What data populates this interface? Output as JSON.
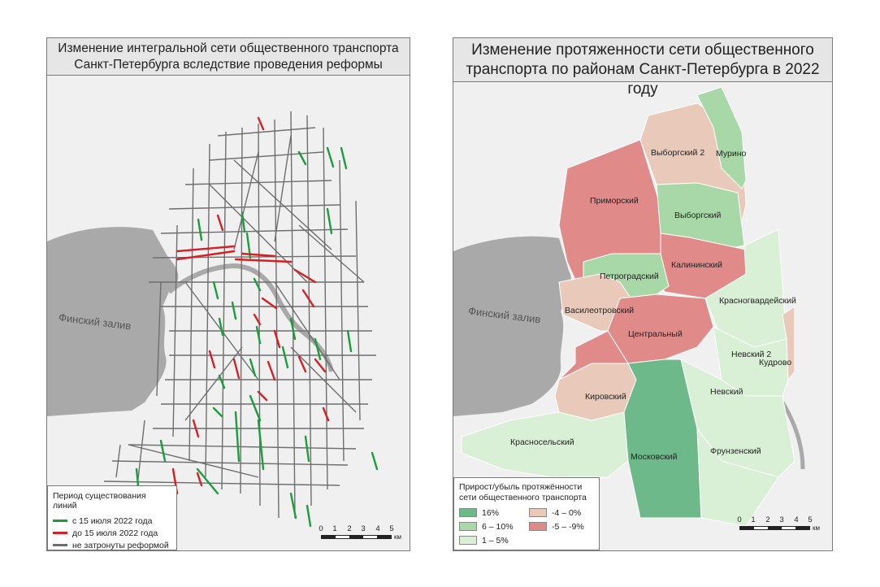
{
  "left_map": {
    "title_line1": "Изменение интегральной сети общественного транспорта",
    "title_line2": "Санкт-Петербурга вследствие проведения реформы",
    "gulf_label": "Финский залив",
    "legend": {
      "title": "Период существования линий",
      "items": [
        {
          "label": "с 15 июля 2022 года",
          "color": "#1a9e3c"
        },
        {
          "label": "до 15 июля 2022 года",
          "color": "#d62024"
        },
        {
          "label": "не затронуты реформой",
          "color": "#6e6e6e"
        }
      ]
    },
    "scale": {
      "ticks": [
        "0",
        "1",
        "2",
        "3",
        "4",
        "5"
      ],
      "unit": "км"
    }
  },
  "right_map": {
    "title_line1": "Изменение протяженности сети общественного",
    "title_line2": "транспорта по районам Санкт-Петербурга в 2022 году",
    "gulf_label": "Финский залив",
    "legend": {
      "title_line1": "Прирост/убыль протяжённости",
      "title_line2": "сети общественного транспорта",
      "items": [
        {
          "label": "16%",
          "color": "#6db98a"
        },
        {
          "label": "-4 – 0%",
          "color": "#e9c9b9"
        },
        {
          "label": "6 – 10%",
          "color": "#a8d8a8"
        },
        {
          "label": "-5 – -9%",
          "color": "#e08a8a"
        },
        {
          "label": "1 – 5%",
          "color": "#d9f0d6"
        }
      ]
    },
    "scale": {
      "ticks": [
        "0",
        "1",
        "2",
        "3",
        "4",
        "5"
      ],
      "unit": "км"
    },
    "districts": [
      {
        "name": "Приморский",
        "class": "-5 – -9%"
      },
      {
        "name": "Выборгский 2",
        "class": "-4 – 0%"
      },
      {
        "name": "Мурино",
        "class": "6 – 10%"
      },
      {
        "name": "Выборгский",
        "class": "6 – 10%"
      },
      {
        "name": "Калининский",
        "class": "-5 – -9%"
      },
      {
        "name": "Петроградский",
        "class": "6 – 10%"
      },
      {
        "name": "Василеотровский",
        "class": "-4 – 0%"
      },
      {
        "name": "Красногвардейский",
        "class": "1 – 5%"
      },
      {
        "name": "Центральный",
        "class": "-5 – -9%"
      },
      {
        "name": "Невский 2",
        "class": "1 – 5%"
      },
      {
        "name": "Кудрово",
        "class": "-4 – 0%"
      },
      {
        "name": "Невский",
        "class": "1 – 5%"
      },
      {
        "name": "Кировский",
        "class": "-4 – 0%"
      },
      {
        "name": "Красносельский",
        "class": "1 – 5%"
      },
      {
        "name": "Московский",
        "class": "16%"
      },
      {
        "name": "Фрунзенский",
        "class": "1 – 5%"
      }
    ]
  },
  "colors": {
    "water": "#a9a9a9",
    "land": "#f0f0f0",
    "new_route": "#1a9e3c",
    "removed_route": "#d62024",
    "unchanged_route": "#6e6e6e"
  }
}
